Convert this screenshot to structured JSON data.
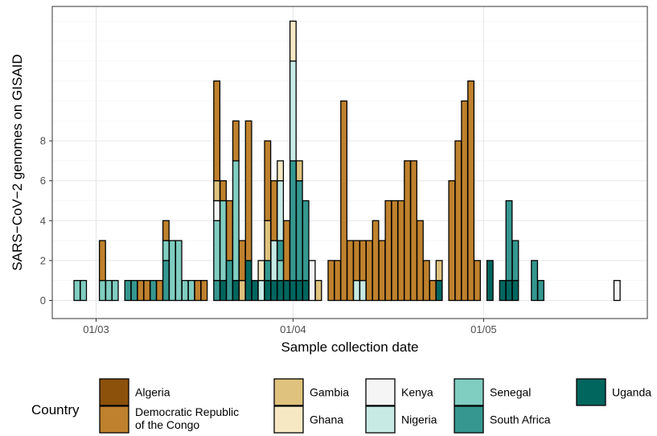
{
  "chart_data": {
    "type": "bar",
    "stacked": true,
    "xlabel": "Sample collection date",
    "ylabel": "SARS−CoV−2 genomes on GISAID",
    "x_unit": "day",
    "x_ticks": [
      {
        "date": "2020-03-01",
        "label": "01/03"
      },
      {
        "date": "2020-04-01",
        "label": "01/04"
      },
      {
        "date": "2020-05-01",
        "label": "01/05"
      }
    ],
    "y_ticks": [
      0,
      2,
      4,
      6,
      8
    ],
    "ylim": [
      -0.6,
      14.5
    ],
    "grid": true,
    "legend": {
      "position": "bottom",
      "title": "Country",
      "entries": [
        {
          "key": "algeria",
          "label": "Algeria",
          "color": "#8c510a"
        },
        {
          "key": "drc",
          "label": "Democratic Republic of the Congo",
          "color": "#bf812d"
        },
        {
          "key": "gambia",
          "label": "Gambia",
          "color": "#dfc27d"
        },
        {
          "key": "ghana",
          "label": "Ghana",
          "color": "#f6e8c3"
        },
        {
          "key": "kenya",
          "label": "Kenya",
          "color": "#f5f5f5"
        },
        {
          "key": "nigeria",
          "label": "Nigeria",
          "color": "#c7eae5"
        },
        {
          "key": "senegal",
          "label": "Senegal",
          "color": "#80cdc1"
        },
        {
          "key": "south_africa",
          "label": "South Africa",
          "color": "#35978f"
        },
        {
          "key": "uganda",
          "label": "Uganda",
          "color": "#01665e"
        }
      ]
    },
    "bars": [
      {
        "date": "2020-02-27",
        "stack": [
          [
            "senegal",
            1
          ]
        ]
      },
      {
        "date": "2020-02-28",
        "stack": [
          [
            "senegal",
            1
          ]
        ]
      },
      {
        "date": "2020-03-02",
        "stack": [
          [
            "senegal",
            1
          ],
          [
            "drc",
            2
          ]
        ]
      },
      {
        "date": "2020-03-03",
        "stack": [
          [
            "senegal",
            1
          ]
        ]
      },
      {
        "date": "2020-03-04",
        "stack": [
          [
            "senegal",
            1
          ]
        ]
      },
      {
        "date": "2020-03-06",
        "stack": [
          [
            "south_africa",
            1
          ]
        ]
      },
      {
        "date": "2020-03-07",
        "stack": [
          [
            "south_africa",
            1
          ]
        ]
      },
      {
        "date": "2020-03-08",
        "stack": [
          [
            "drc",
            1
          ]
        ]
      },
      {
        "date": "2020-03-09",
        "stack": [
          [
            "drc",
            1
          ]
        ]
      },
      {
        "date": "2020-03-10",
        "stack": [
          [
            "south_africa",
            1
          ]
        ]
      },
      {
        "date": "2020-03-11",
        "stack": [
          [
            "drc",
            1
          ]
        ]
      },
      {
        "date": "2020-03-12",
        "stack": [
          [
            "south_africa",
            2
          ],
          [
            "senegal",
            1
          ],
          [
            "drc",
            1
          ]
        ]
      },
      {
        "date": "2020-03-13",
        "stack": [
          [
            "senegal",
            3
          ]
        ]
      },
      {
        "date": "2020-03-14",
        "stack": [
          [
            "senegal",
            3
          ]
        ]
      },
      {
        "date": "2020-03-15",
        "stack": [
          [
            "senegal",
            1
          ]
        ]
      },
      {
        "date": "2020-03-16",
        "stack": [
          [
            "senegal",
            1
          ]
        ]
      },
      {
        "date": "2020-03-17",
        "stack": [
          [
            "drc",
            1
          ]
        ]
      },
      {
        "date": "2020-03-18",
        "stack": [
          [
            "drc",
            1
          ]
        ]
      },
      {
        "date": "2020-03-20",
        "stack": [
          [
            "south_africa",
            1
          ],
          [
            "senegal",
            3
          ],
          [
            "kenya",
            1
          ],
          [
            "gambia",
            1
          ],
          [
            "drc",
            5
          ]
        ]
      },
      {
        "date": "2020-03-21",
        "stack": [
          [
            "uganda",
            1
          ],
          [
            "senegal",
            4
          ],
          [
            "drc",
            1
          ]
        ]
      },
      {
        "date": "2020-03-22",
        "stack": [
          [
            "south_africa",
            2
          ],
          [
            "drc",
            3
          ]
        ]
      },
      {
        "date": "2020-03-23",
        "stack": [
          [
            "uganda",
            1
          ],
          [
            "senegal",
            6
          ],
          [
            "drc",
            2
          ]
        ]
      },
      {
        "date": "2020-03-24",
        "stack": [
          [
            "gambia",
            1
          ],
          [
            "drc",
            2
          ]
        ]
      },
      {
        "date": "2020-03-25",
        "stack": [
          [
            "uganda",
            2
          ],
          [
            "drc",
            7
          ]
        ]
      },
      {
        "date": "2020-03-26",
        "stack": [
          [
            "uganda",
            1
          ]
        ]
      },
      {
        "date": "2020-03-27",
        "stack": [
          [
            "nigeria",
            1
          ],
          [
            "ghana",
            1
          ]
        ]
      },
      {
        "date": "2020-03-28",
        "stack": [
          [
            "uganda",
            1
          ],
          [
            "south_africa",
            1
          ],
          [
            "gambia",
            2
          ],
          [
            "drc",
            4
          ]
        ]
      },
      {
        "date": "2020-03-29",
        "stack": [
          [
            "uganda",
            1
          ],
          [
            "nigeria",
            2
          ],
          [
            "drc",
            3
          ]
        ]
      },
      {
        "date": "2020-03-30",
        "stack": [
          [
            "uganda",
            1
          ],
          [
            "senegal",
            1
          ],
          [
            "south_africa",
            1
          ],
          [
            "nigeria",
            3
          ],
          [
            "ghana",
            1
          ]
        ]
      },
      {
        "date": "2020-03-31",
        "stack": [
          [
            "uganda",
            1
          ],
          [
            "drc",
            3
          ]
        ]
      },
      {
        "date": "2020-04-01",
        "stack": [
          [
            "uganda",
            1
          ],
          [
            "south_africa",
            6
          ],
          [
            "nigeria",
            5
          ],
          [
            "ghana",
            2
          ]
        ]
      },
      {
        "date": "2020-04-02",
        "stack": [
          [
            "uganda",
            1
          ],
          [
            "south_africa",
            5
          ],
          [
            "gambia",
            1
          ]
        ]
      },
      {
        "date": "2020-04-03",
        "stack": [
          [
            "uganda",
            1
          ],
          [
            "south_africa",
            4
          ]
        ]
      },
      {
        "date": "2020-04-04",
        "stack": [
          [
            "kenya",
            2
          ]
        ]
      },
      {
        "date": "2020-04-05",
        "stack": [
          [
            "gambia",
            1
          ]
        ]
      },
      {
        "date": "2020-04-07",
        "stack": [
          [
            "drc",
            2
          ]
        ]
      },
      {
        "date": "2020-04-08",
        "stack": [
          [
            "drc",
            2
          ]
        ]
      },
      {
        "date": "2020-04-09",
        "stack": [
          [
            "drc",
            10
          ]
        ]
      },
      {
        "date": "2020-04-10",
        "stack": [
          [
            "drc",
            3
          ]
        ]
      },
      {
        "date": "2020-04-11",
        "stack": [
          [
            "nigeria",
            1
          ],
          [
            "drc",
            2
          ]
        ]
      },
      {
        "date": "2020-04-12",
        "stack": [
          [
            "nigeria",
            1
          ],
          [
            "drc",
            2
          ]
        ]
      },
      {
        "date": "2020-04-13",
        "stack": [
          [
            "drc",
            3
          ]
        ]
      },
      {
        "date": "2020-04-14",
        "stack": [
          [
            "drc",
            4
          ]
        ]
      },
      {
        "date": "2020-04-15",
        "stack": [
          [
            "drc",
            3
          ]
        ]
      },
      {
        "date": "2020-04-16",
        "stack": [
          [
            "drc",
            5
          ]
        ]
      },
      {
        "date": "2020-04-17",
        "stack": [
          [
            "drc",
            5
          ]
        ]
      },
      {
        "date": "2020-04-18",
        "stack": [
          [
            "drc",
            5
          ]
        ]
      },
      {
        "date": "2020-04-19",
        "stack": [
          [
            "drc",
            7
          ]
        ]
      },
      {
        "date": "2020-04-20",
        "stack": [
          [
            "drc",
            7
          ]
        ]
      },
      {
        "date": "2020-04-21",
        "stack": [
          [
            "drc",
            4
          ]
        ]
      },
      {
        "date": "2020-04-22",
        "stack": [
          [
            "drc",
            2
          ]
        ]
      },
      {
        "date": "2020-04-23",
        "stack": [
          [
            "drc",
            1
          ]
        ]
      },
      {
        "date": "2020-04-24",
        "stack": [
          [
            "uganda",
            1
          ],
          [
            "gambia",
            1
          ]
        ]
      },
      {
        "date": "2020-04-26",
        "stack": [
          [
            "drc",
            6
          ]
        ]
      },
      {
        "date": "2020-04-27",
        "stack": [
          [
            "drc",
            8
          ]
        ]
      },
      {
        "date": "2020-04-28",
        "stack": [
          [
            "drc",
            10
          ]
        ]
      },
      {
        "date": "2020-04-29",
        "stack": [
          [
            "drc",
            11
          ]
        ]
      },
      {
        "date": "2020-04-30",
        "stack": [
          [
            "drc",
            2
          ]
        ]
      },
      {
        "date": "2020-05-02",
        "stack": [
          [
            "uganda",
            2
          ]
        ]
      },
      {
        "date": "2020-05-04",
        "stack": [
          [
            "uganda",
            1
          ]
        ]
      },
      {
        "date": "2020-05-05",
        "stack": [
          [
            "uganda",
            1
          ],
          [
            "south_africa",
            4
          ]
        ]
      },
      {
        "date": "2020-05-06",
        "stack": [
          [
            "uganda",
            1
          ],
          [
            "south_africa",
            2
          ]
        ]
      },
      {
        "date": "2020-05-09",
        "stack": [
          [
            "south_africa",
            2
          ]
        ]
      },
      {
        "date": "2020-05-10",
        "stack": [
          [
            "south_africa",
            1
          ]
        ]
      },
      {
        "date": "2020-05-22",
        "stack": [
          [
            "kenya",
            1
          ]
        ]
      }
    ]
  }
}
